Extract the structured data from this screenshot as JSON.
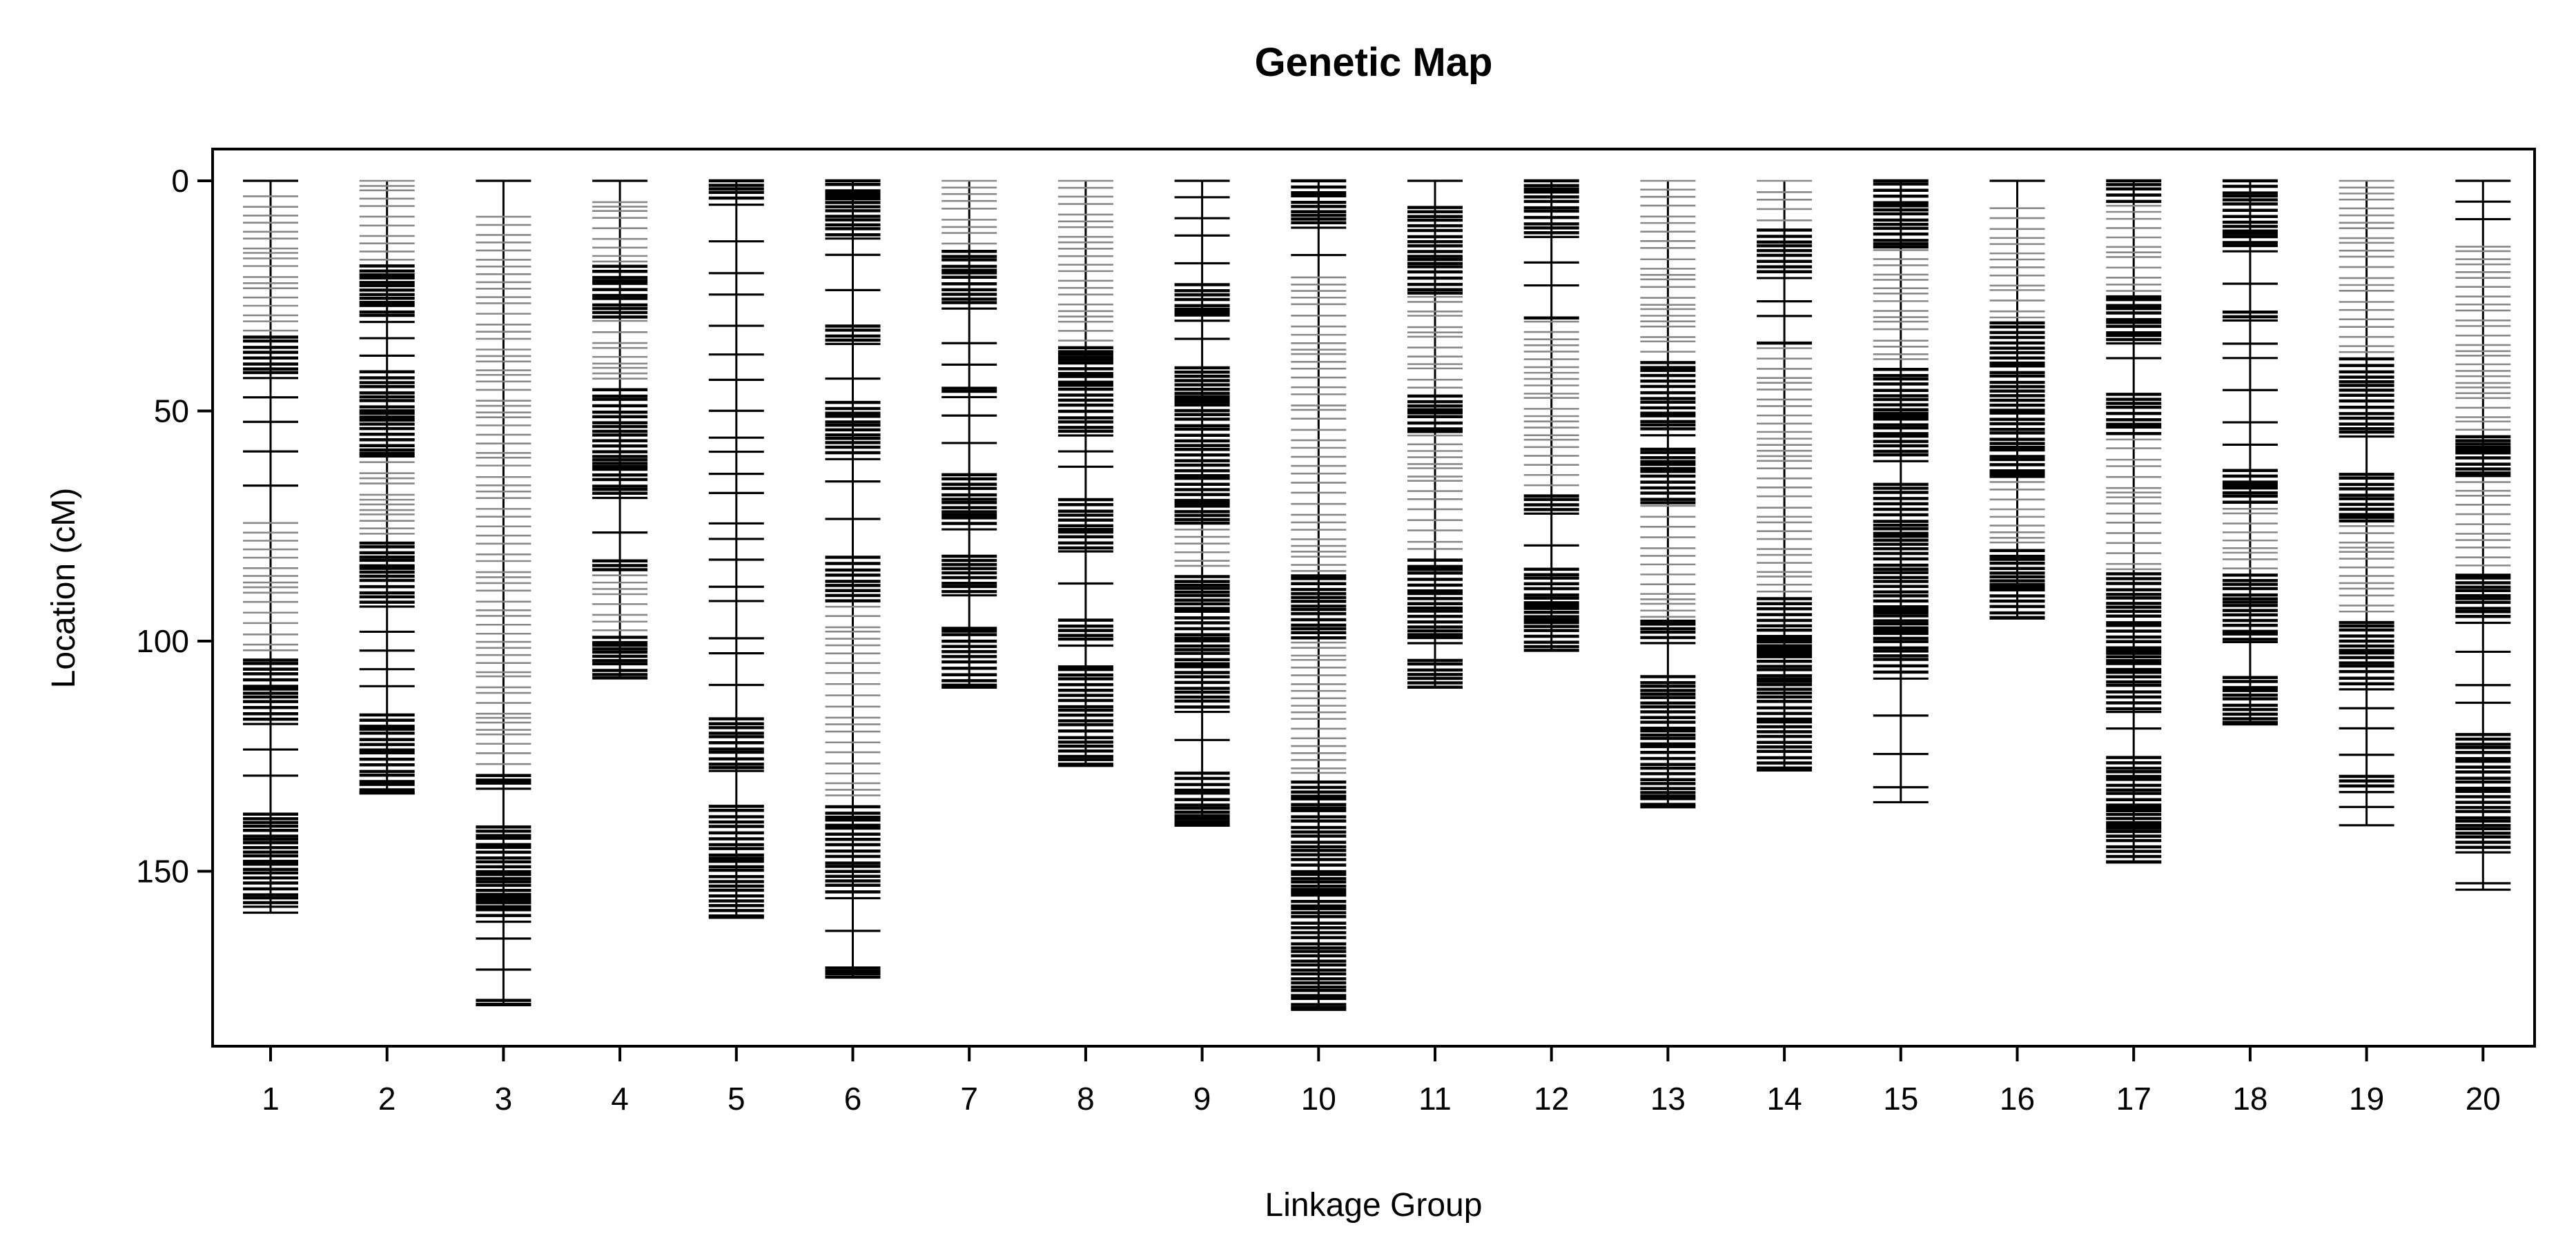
{
  "chart_data": {
    "type": "genetic-map",
    "title": "Genetic Map",
    "xlabel": "Linkage Group",
    "ylabel": "Location (cM)",
    "ylim": [
      0,
      188
    ],
    "y_reversed": true,
    "yticks": [
      0,
      50,
      100,
      150
    ],
    "grid": false,
    "legend": "none",
    "colors": {
      "axis": "#000000",
      "marker": "#000000",
      "marker_light": "#888888",
      "background": "#ffffff"
    },
    "groups": [
      {
        "label": "1",
        "length": 159,
        "dense": [
          [
            33,
            42
          ],
          [
            103,
            118
          ],
          [
            130,
            157
          ]
        ],
        "light": [
          [
            2,
            35
          ],
          [
            74,
            103
          ]
        ]
      },
      {
        "label": "2",
        "length": 133,
        "dense": [
          [
            18,
            30
          ],
          [
            40,
            60
          ],
          [
            78,
            92
          ],
          [
            110,
            133
          ]
        ],
        "light": [
          [
            0,
            18
          ],
          [
            60,
            78
          ]
        ]
      },
      {
        "label": "3",
        "length": 179,
        "dense": [
          [
            128,
            132
          ],
          [
            140,
            160
          ],
          [
            172,
            179
          ]
        ],
        "light": [
          [
            2,
            128
          ]
        ]
      },
      {
        "label": "4",
        "length": 108,
        "dense": [
          [
            18,
            30
          ],
          [
            45,
            68
          ],
          [
            78,
            85
          ],
          [
            98,
            108
          ]
        ],
        "light": [
          [
            2,
            45
          ],
          [
            85,
            98
          ]
        ]
      },
      {
        "label": "5",
        "length": 160,
        "dense": [
          [
            0,
            5
          ],
          [
            110,
            128
          ],
          [
            130,
            160
          ]
        ],
        "light": []
      },
      {
        "label": "6",
        "length": 173,
        "dense": [
          [
            0,
            12
          ],
          [
            28,
            35
          ],
          [
            44,
            60
          ],
          [
            75,
            92
          ],
          [
            135,
            155
          ],
          [
            165,
            173
          ]
        ],
        "light": [
          [
            92,
            135
          ]
        ]
      },
      {
        "label": "7",
        "length": 110,
        "dense": [
          [
            15,
            27
          ],
          [
            40,
            46
          ],
          [
            60,
            75
          ],
          [
            80,
            90
          ],
          [
            92,
            110
          ]
        ],
        "light": [
          [
            0,
            15
          ]
        ]
      },
      {
        "label": "8",
        "length": 127,
        "dense": [
          [
            35,
            55
          ],
          [
            65,
            80
          ],
          [
            88,
            100
          ],
          [
            105,
            127
          ]
        ],
        "light": [
          [
            0,
            35
          ]
        ]
      },
      {
        "label": "9",
        "length": 140,
        "dense": [
          [
            18,
            30
          ],
          [
            40,
            75
          ],
          [
            85,
            115
          ],
          [
            125,
            140
          ]
        ],
        "light": [
          [
            75,
            85
          ]
        ]
      },
      {
        "label": "10",
        "length": 180,
        "dense": [
          [
            0,
            10
          ],
          [
            85,
            100
          ],
          [
            130,
            180
          ]
        ],
        "light": [
          [
            20,
            85
          ],
          [
            100,
            130
          ]
        ]
      },
      {
        "label": "11",
        "length": 110,
        "dense": [
          [
            5,
            25
          ],
          [
            45,
            55
          ],
          [
            80,
            100
          ],
          [
            103,
            110
          ]
        ],
        "light": [
          [
            25,
            80
          ]
        ]
      },
      {
        "label": "12",
        "length": 102,
        "dense": [
          [
            0,
            12
          ],
          [
            25,
            30
          ],
          [
            68,
            72
          ],
          [
            80,
            102
          ]
        ],
        "light": [
          [
            30,
            68
          ]
        ]
      },
      {
        "label": "13",
        "length": 136,
        "dense": [
          [
            38,
            55
          ],
          [
            58,
            70
          ],
          [
            95,
            100
          ],
          [
            105,
            136
          ]
        ],
        "light": [
          [
            0,
            38
          ],
          [
            70,
            95
          ]
        ]
      },
      {
        "label": "14",
        "length": 128,
        "dense": [
          [
            10,
            20
          ],
          [
            30,
            36
          ],
          [
            90,
            128
          ]
        ],
        "light": [
          [
            0,
            10
          ],
          [
            36,
            90
          ]
        ]
      },
      {
        "label": "15",
        "length": 135,
        "dense": [
          [
            0,
            15
          ],
          [
            40,
            60
          ],
          [
            65,
            108
          ]
        ],
        "light": [
          [
            15,
            40
          ]
        ]
      },
      {
        "label": "16",
        "length": 95,
        "dense": [
          [
            30,
            65
          ],
          [
            80,
            95
          ]
        ],
        "light": [
          [
            5,
            30
          ],
          [
            65,
            80
          ]
        ]
      },
      {
        "label": "17",
        "length": 148,
        "dense": [
          [
            0,
            5
          ],
          [
            25,
            35
          ],
          [
            45,
            55
          ],
          [
            85,
            115
          ],
          [
            125,
            148
          ]
        ],
        "light": [
          [
            5,
            25
          ],
          [
            55,
            85
          ]
        ]
      },
      {
        "label": "18",
        "length": 118,
        "dense": [
          [
            0,
            15
          ],
          [
            25,
            30
          ],
          [
            60,
            70
          ],
          [
            85,
            100
          ],
          [
            105,
            118
          ]
        ],
        "light": [
          [
            70,
            85
          ]
        ]
      },
      {
        "label": "19",
        "length": 140,
        "dense": [
          [
            38,
            55
          ],
          [
            60,
            75
          ],
          [
            95,
            110
          ],
          [
            128,
            132
          ]
        ],
        "light": [
          [
            0,
            38
          ],
          [
            75,
            95
          ]
        ]
      },
      {
        "label": "20",
        "length": 154,
        "dense": [
          [
            55,
            65
          ],
          [
            85,
            95
          ],
          [
            115,
            145
          ]
        ],
        "light": [
          [
            10,
            55
          ],
          [
            65,
            85
          ]
        ]
      }
    ]
  }
}
